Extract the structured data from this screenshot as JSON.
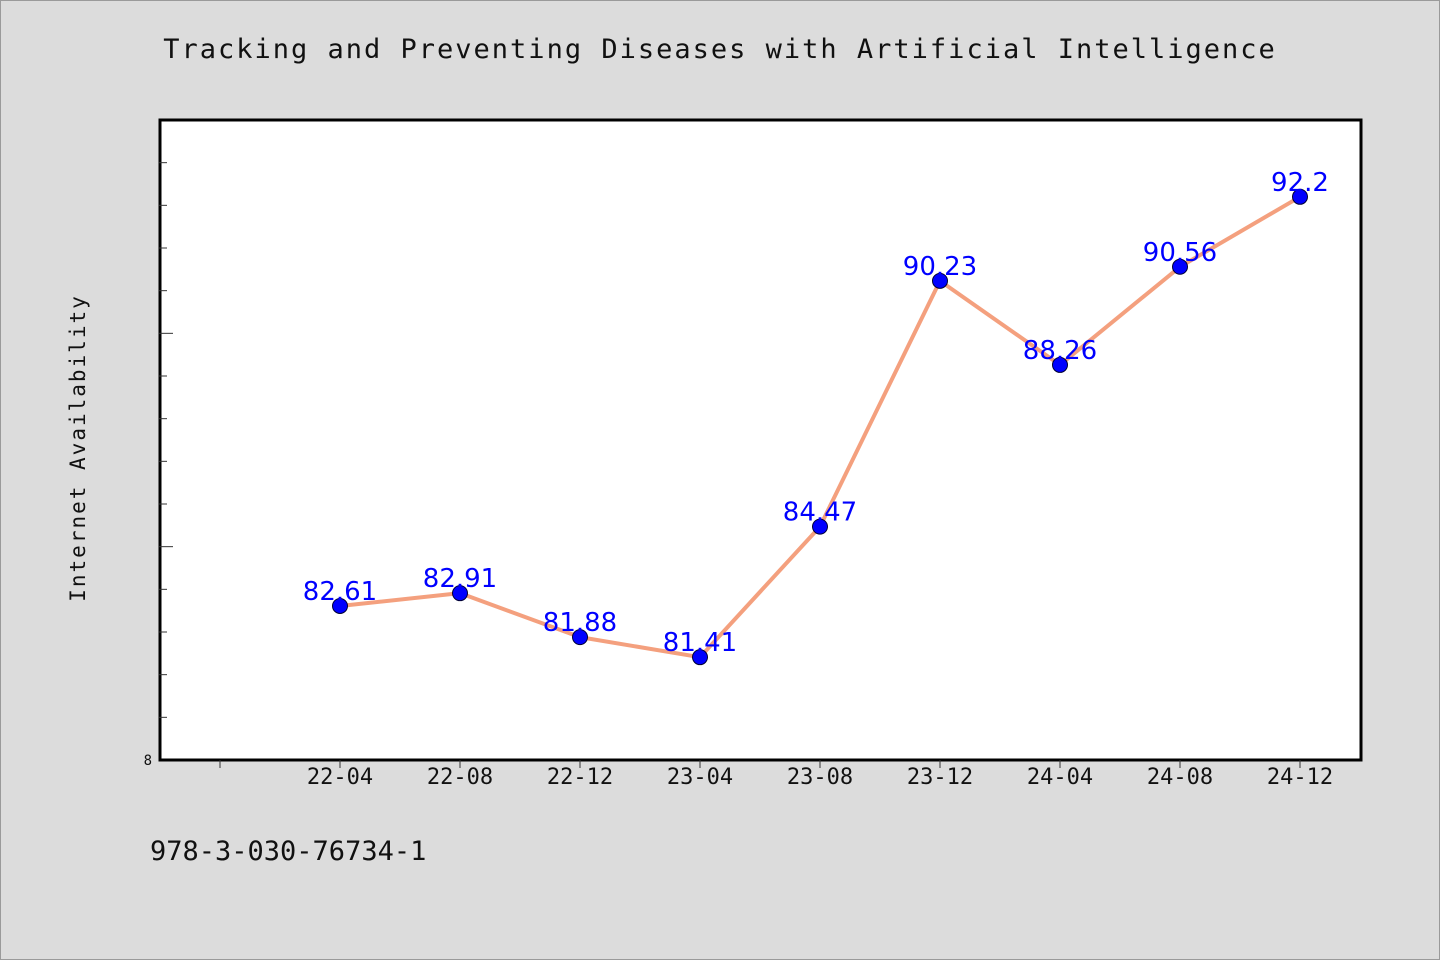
{
  "chart_data": {
    "type": "line",
    "title": "Tracking and Preventing Diseases with Artificial Intelligence",
    "xlabel": "",
    "ylabel": "Internet Availability",
    "categories": [
      "22-04",
      "22-08",
      "22-12",
      "23-04",
      "23-08",
      "23-12",
      "24-04",
      "24-08",
      "24-12"
    ],
    "series": [
      {
        "values": [
          82.61,
          82.91,
          81.88,
          81.41,
          84.47,
          90.23,
          88.26,
          90.56,
          92.2
        ]
      }
    ],
    "data_labels": [
      "82.61",
      "82.91",
      "81.88",
      "81.41",
      "84.47",
      "90.23",
      "88.26",
      "90.56",
      "92.2"
    ],
    "y_min_label": "8",
    "ylim": [
      79.0,
      94.0
    ],
    "grid": false,
    "legend": "none",
    "colors": {
      "line": "#f4a07e",
      "marker": "#0000ff",
      "label": "#0000ff",
      "background": "#dcdcdc",
      "plot_background": "#ffffff"
    }
  },
  "footer": {
    "code": "978-3-030-76734-1"
  }
}
